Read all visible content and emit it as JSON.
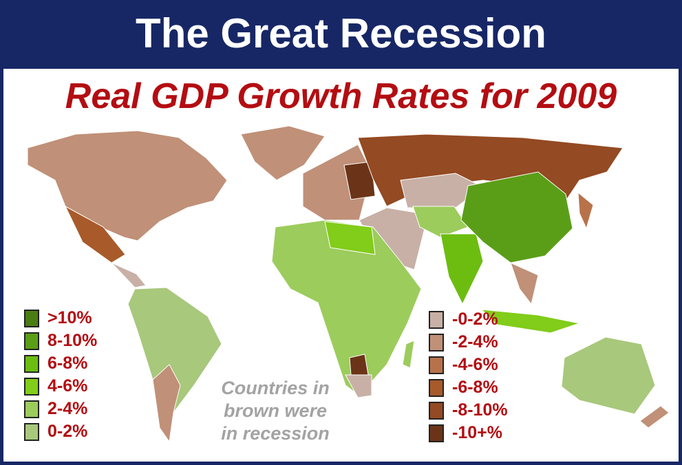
{
  "header": {
    "title": "The Great Recession"
  },
  "subtitle": "Real GDP Growth Rates for 2009",
  "note": [
    "Countries in",
    "brown were",
    "in recession"
  ],
  "legend_growth": [
    {
      "label": ">10%",
      "color": "#4a7d12"
    },
    {
      "label": "8-10%",
      "color": "#5a9e18"
    },
    {
      "label": "6-8%",
      "color": "#6cbd10"
    },
    {
      "label": "4-6%",
      "color": "#82cc1a"
    },
    {
      "label": "2-4%",
      "color": "#9ccc5c"
    },
    {
      "label": "0-2%",
      "color": "#a8c87c"
    }
  ],
  "legend_recession": [
    {
      "label": "-0-2%",
      "color": "#c8b0a6"
    },
    {
      "label": "-2-4%",
      "color": "#c09078"
    },
    {
      "label": "-4-6%",
      "color": "#b8724a"
    },
    {
      "label": "-6-8%",
      "color": "#a85a2a"
    },
    {
      "label": "-8-10%",
      "color": "#944a22"
    },
    {
      "label": "-10+%",
      "color": "#6b3418"
    }
  ]
}
